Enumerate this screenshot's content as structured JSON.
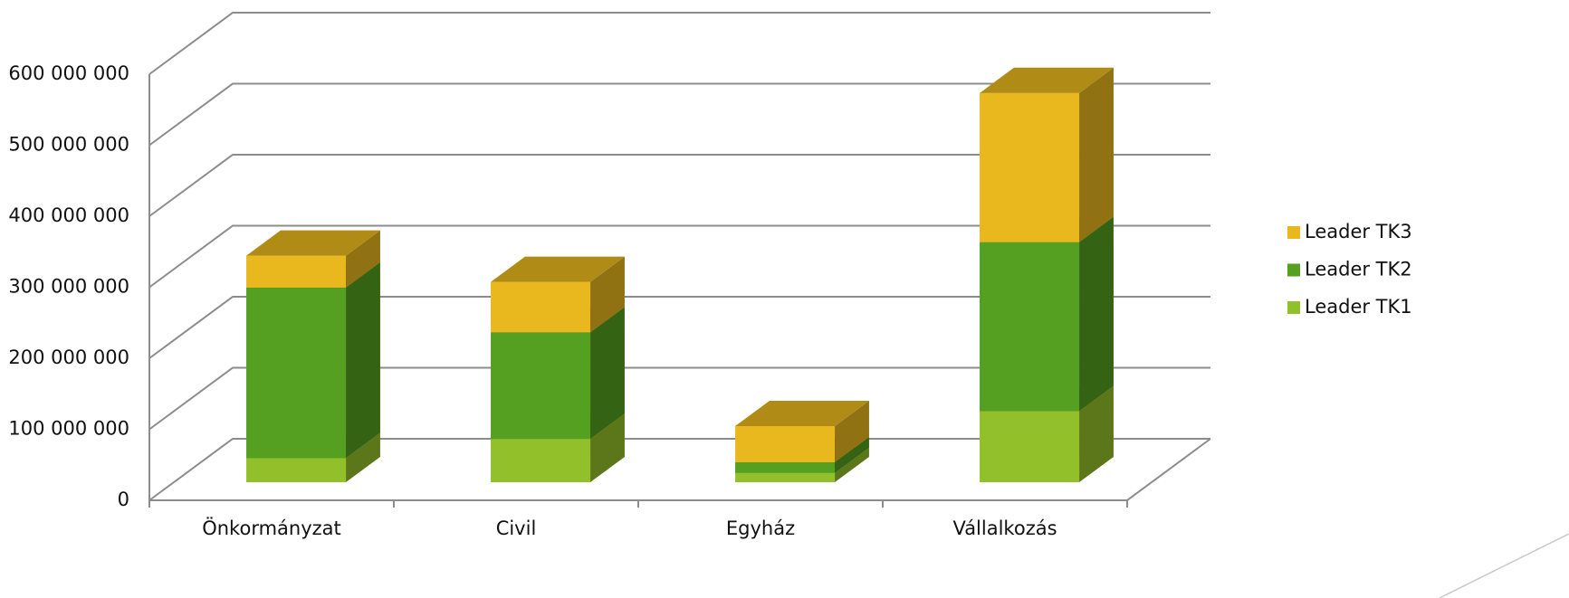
{
  "chart_data": {
    "type": "bar3d_stacked",
    "categories": [
      "Önkormányzat",
      "Civil",
      "Egyház",
      "Vállalkozás"
    ],
    "series": [
      {
        "name": "Leader TK1",
        "color": "#92c02a",
        "values": [
          34000000,
          61000000,
          13000000,
          100000000
        ]
      },
      {
        "name": "Leader TK2",
        "color": "#55a021",
        "values": [
          240000000,
          150000000,
          15000000,
          238000000
        ]
      },
      {
        "name": "Leader TK3",
        "color": "#e8b81e",
        "values": [
          45000000,
          71000000,
          51000000,
          210000000
        ]
      }
    ],
    "ylim": [
      0,
      600000000
    ],
    "yticks": [
      {
        "value": 0,
        "label": "0"
      },
      {
        "value": 100000000,
        "label": "100 000 000"
      },
      {
        "value": 200000000,
        "label": "200 000 000"
      },
      {
        "value": 300000000,
        "label": "300 000 000"
      },
      {
        "value": 400000000,
        "label": "400 000 000"
      },
      {
        "value": 500000000,
        "label": "500 000 000"
      },
      {
        "value": 600000000,
        "label": "600 000 000"
      }
    ],
    "grid": true,
    "legend": "right"
  }
}
